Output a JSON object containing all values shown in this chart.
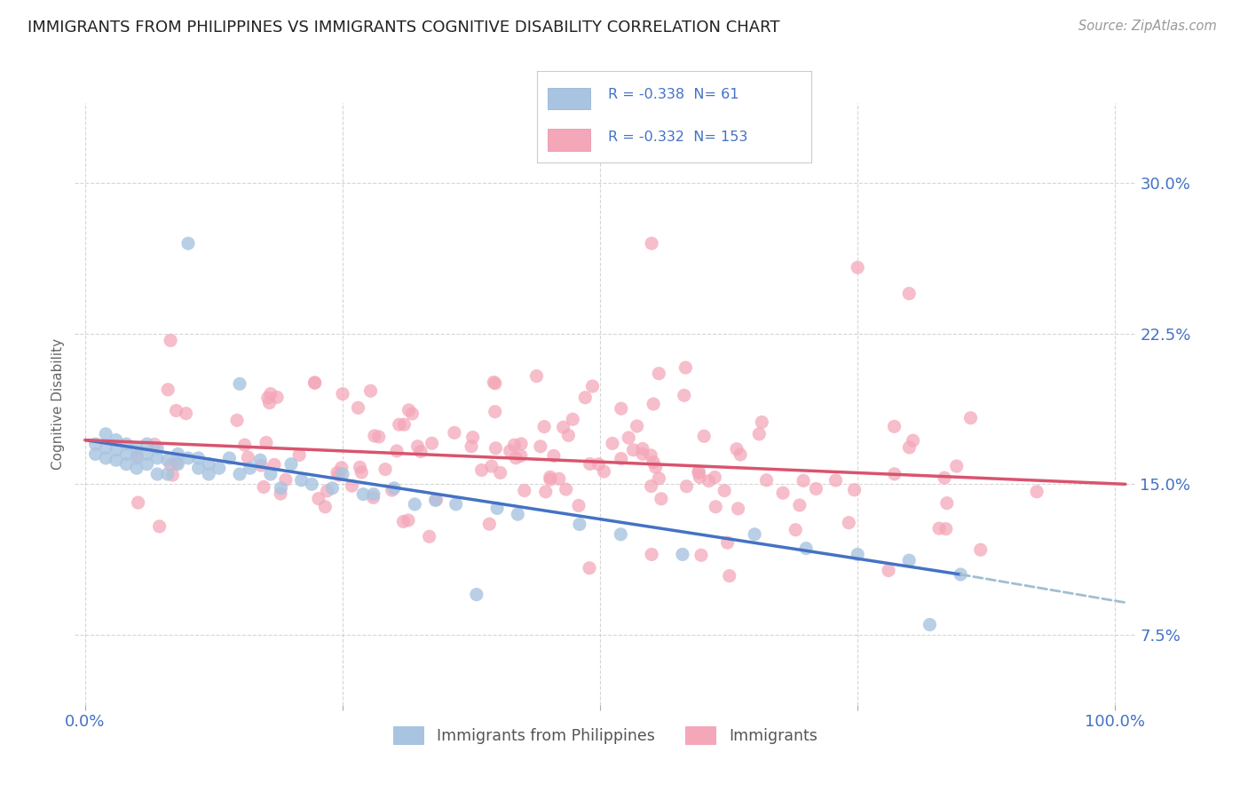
{
  "title": "IMMIGRANTS FROM PHILIPPINES VS IMMIGRANTS COGNITIVE DISABILITY CORRELATION CHART",
  "source": "Source: ZipAtlas.com",
  "ylabel": "Cognitive Disability",
  "yticks": [
    0.075,
    0.15,
    0.225,
    0.3
  ],
  "ytick_labels": [
    "7.5%",
    "15.0%",
    "22.5%",
    "30.0%"
  ],
  "legend_label1": "Immigrants from Philippines",
  "legend_label2": "Immigrants",
  "R1": -0.338,
  "N1": 61,
  "R2": -0.332,
  "N2": 153,
  "color1": "#a8c4e0",
  "color2": "#f4a7b9",
  "trendline1_color": "#4472c4",
  "trendline2_color": "#d9546e",
  "trendline_dash_color": "#a0bfd0",
  "background_color": "#ffffff",
  "grid_color": "#cccccc",
  "title_color": "#222222",
  "axis_color": "#4472c4",
  "legend_text_color": "#222222",
  "ylim_min": 0.04,
  "ylim_max": 0.34,
  "xlim_min": -0.01,
  "xlim_max": 1.02,
  "blue_trendline_start_x": 0.0,
  "blue_trendline_start_y": 0.172,
  "blue_trendline_end_x": 0.85,
  "blue_trendline_end_y": 0.105,
  "blue_trendline_dash_end_x": 1.01,
  "blue_trendline_dash_end_y": 0.091,
  "pink_trendline_start_x": 0.0,
  "pink_trendline_start_y": 0.172,
  "pink_trendline_end_x": 1.01,
  "pink_trendline_end_y": 0.15
}
